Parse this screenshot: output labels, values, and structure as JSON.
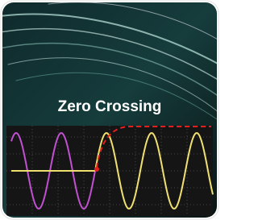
{
  "title": "Zero Crossing"
}
